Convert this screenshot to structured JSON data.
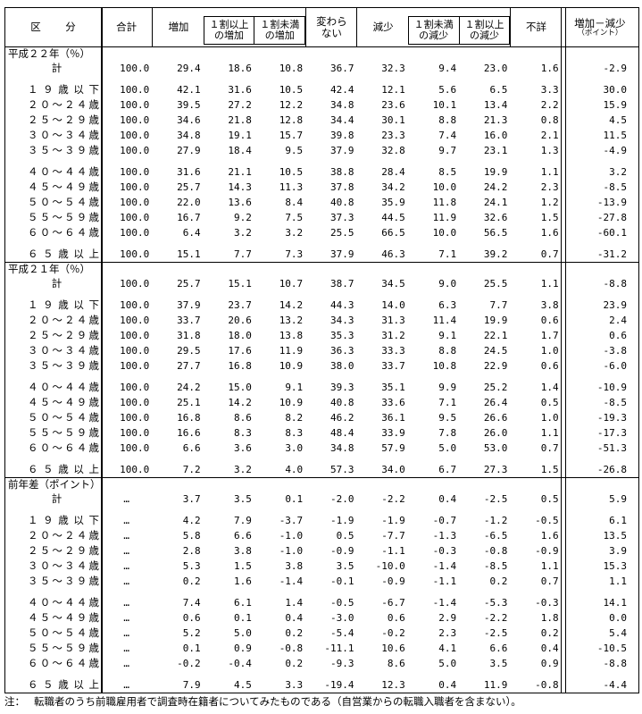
{
  "header": {
    "category_label": "区　分",
    "col_total": "合計",
    "col_increase": "増加",
    "col_increase_10plus": "１割以上\nの増加",
    "col_increase_under10": "１割未満\nの増加",
    "col_unchanged": "変わら\nない",
    "col_decrease": "減少",
    "col_decrease_under10": "１割未満\nの減少",
    "col_decrease_10plus": "１割以上\nの減少",
    "col_unknown": "不詳",
    "col_diff": "増加－減少",
    "col_diff_unit": "（ポイント）"
  },
  "sections": [
    {
      "title": "平成２２年（％）",
      "groups": [
        [
          {
            "label": "計",
            "values": [
              "100.0",
              "29.4",
              "18.6",
              "10.8",
              "36.7",
              "32.3",
              "9.4",
              "23.0",
              "1.6"
            ],
            "diff": "-2.9"
          }
        ],
        [
          {
            "label": "１９歳以下",
            "values": [
              "100.0",
              "42.1",
              "31.6",
              "10.5",
              "42.4",
              "12.1",
              "5.6",
              "6.5",
              "3.3"
            ],
            "diff": "30.0"
          },
          {
            "label": "２０～２４歳",
            "values": [
              "100.0",
              "39.5",
              "27.2",
              "12.2",
              "34.8",
              "23.6",
              "10.1",
              "13.4",
              "2.2"
            ],
            "diff": "15.9"
          },
          {
            "label": "２５～２９歳",
            "values": [
              "100.0",
              "34.6",
              "21.8",
              "12.8",
              "34.4",
              "30.1",
              "8.8",
              "21.3",
              "0.8"
            ],
            "diff": "4.5"
          },
          {
            "label": "３０～３４歳",
            "values": [
              "100.0",
              "34.8",
              "19.1",
              "15.7",
              "39.8",
              "23.3",
              "7.4",
              "16.0",
              "2.1"
            ],
            "diff": "11.5"
          },
          {
            "label": "３５～３９歳",
            "values": [
              "100.0",
              "27.9",
              "18.4",
              "9.5",
              "37.9",
              "32.8",
              "9.7",
              "23.1",
              "1.3"
            ],
            "diff": "-4.9"
          }
        ],
        [
          {
            "label": "４０～４４歳",
            "values": [
              "100.0",
              "31.6",
              "21.1",
              "10.5",
              "38.8",
              "28.4",
              "8.5",
              "19.9",
              "1.1"
            ],
            "diff": "3.2"
          },
          {
            "label": "４５～４９歳",
            "values": [
              "100.0",
              "25.7",
              "14.3",
              "11.3",
              "37.8",
              "34.2",
              "10.0",
              "24.2",
              "2.3"
            ],
            "diff": "-8.5"
          },
          {
            "label": "５０～５４歳",
            "values": [
              "100.0",
              "22.0",
              "13.6",
              "8.4",
              "40.8",
              "35.9",
              "11.8",
              "24.1",
              "1.2"
            ],
            "diff": "-13.9"
          },
          {
            "label": "５５～５９歳",
            "values": [
              "100.0",
              "16.7",
              "9.2",
              "7.5",
              "37.3",
              "44.5",
              "11.9",
              "32.6",
              "1.5"
            ],
            "diff": "-27.8"
          },
          {
            "label": "６０～６４歳",
            "values": [
              "100.0",
              "6.4",
              "3.2",
              "3.2",
              "25.5",
              "66.5",
              "10.0",
              "56.5",
              "1.6"
            ],
            "diff": "-60.1"
          }
        ],
        [
          {
            "label": "６５歳以上",
            "values": [
              "100.0",
              "15.1",
              "7.7",
              "7.3",
              "37.9",
              "46.3",
              "7.1",
              "39.2",
              "0.7"
            ],
            "diff": "-31.2"
          }
        ]
      ]
    },
    {
      "title": "平成２１年（％）",
      "groups": [
        [
          {
            "label": "計",
            "values": [
              "100.0",
              "25.7",
              "15.1",
              "10.7",
              "38.7",
              "34.5",
              "9.0",
              "25.5",
              "1.1"
            ],
            "diff": "-8.8"
          }
        ],
        [
          {
            "label": "１９歳以下",
            "values": [
              "100.0",
              "37.9",
              "23.7",
              "14.2",
              "44.3",
              "14.0",
              "6.3",
              "7.7",
              "3.8"
            ],
            "diff": "23.9"
          },
          {
            "label": "２０～２４歳",
            "values": [
              "100.0",
              "33.7",
              "20.6",
              "13.2",
              "34.3",
              "31.3",
              "11.4",
              "19.9",
              "0.6"
            ],
            "diff": "2.4"
          },
          {
            "label": "２５～２９歳",
            "values": [
              "100.0",
              "31.8",
              "18.0",
              "13.8",
              "35.3",
              "31.2",
              "9.1",
              "22.1",
              "1.7"
            ],
            "diff": "0.6"
          },
          {
            "label": "３０～３４歳",
            "values": [
              "100.0",
              "29.5",
              "17.6",
              "11.9",
              "36.3",
              "33.3",
              "8.8",
              "24.5",
              "1.0"
            ],
            "diff": "-3.8"
          },
          {
            "label": "３５～３９歳",
            "values": [
              "100.0",
              "27.7",
              "16.8",
              "10.9",
              "38.0",
              "33.7",
              "10.8",
              "22.9",
              "0.6"
            ],
            "diff": "-6.0"
          }
        ],
        [
          {
            "label": "４０～４４歳",
            "values": [
              "100.0",
              "24.2",
              "15.0",
              "9.1",
              "39.3",
              "35.1",
              "9.9",
              "25.2",
              "1.4"
            ],
            "diff": "-10.9"
          },
          {
            "label": "４５～４９歳",
            "values": [
              "100.0",
              "25.1",
              "14.2",
              "10.9",
              "40.8",
              "33.6",
              "7.1",
              "26.4",
              "0.5"
            ],
            "diff": "-8.5"
          },
          {
            "label": "５０～５４歳",
            "values": [
              "100.0",
              "16.8",
              "8.6",
              "8.2",
              "46.2",
              "36.1",
              "9.5",
              "26.6",
              "1.0"
            ],
            "diff": "-19.3"
          },
          {
            "label": "５５～５９歳",
            "values": [
              "100.0",
              "16.6",
              "8.3",
              "8.3",
              "48.4",
              "33.9",
              "7.8",
              "26.0",
              "1.1"
            ],
            "diff": "-17.3"
          },
          {
            "label": "６０～６４歳",
            "values": [
              "100.0",
              "6.6",
              "3.6",
              "3.0",
              "34.8",
              "57.9",
              "5.0",
              "53.0",
              "0.7"
            ],
            "diff": "-51.3"
          }
        ],
        [
          {
            "label": "６５歳以上",
            "values": [
              "100.0",
              "7.2",
              "3.2",
              "4.0",
              "57.3",
              "34.0",
              "6.7",
              "27.3",
              "1.5"
            ],
            "diff": "-26.8"
          }
        ]
      ]
    },
    {
      "title": "前年差（ポイント）",
      "groups": [
        [
          {
            "label": "計",
            "values": [
              "…",
              "3.7",
              "3.5",
              "0.1",
              "-2.0",
              "-2.2",
              "0.4",
              "-2.5",
              "0.5"
            ],
            "diff": "5.9"
          }
        ],
        [
          {
            "label": "１９歳以下",
            "values": [
              "…",
              "4.2",
              "7.9",
              "-3.7",
              "-1.9",
              "-1.9",
              "-0.7",
              "-1.2",
              "-0.5"
            ],
            "diff": "6.1"
          },
          {
            "label": "２０～２４歳",
            "values": [
              "…",
              "5.8",
              "6.6",
              "-1.0",
              "0.5",
              "-7.7",
              "-1.3",
              "-6.5",
              "1.6"
            ],
            "diff": "13.5"
          },
          {
            "label": "２５～２９歳",
            "values": [
              "…",
              "2.8",
              "3.8",
              "-1.0",
              "-0.9",
              "-1.1",
              "-0.3",
              "-0.8",
              "-0.9"
            ],
            "diff": "3.9"
          },
          {
            "label": "３０～３４歳",
            "values": [
              "…",
              "5.3",
              "1.5",
              "3.8",
              "3.5",
              "-10.0",
              "-1.4",
              "-8.5",
              "1.1"
            ],
            "diff": "15.3"
          },
          {
            "label": "３５～３９歳",
            "values": [
              "…",
              "0.2",
              "1.6",
              "-1.4",
              "-0.1",
              "-0.9",
              "-1.1",
              "0.2",
              "0.7"
            ],
            "diff": "1.1"
          }
        ],
        [
          {
            "label": "４０～４４歳",
            "values": [
              "…",
              "7.4",
              "6.1",
              "1.4",
              "-0.5",
              "-6.7",
              "-1.4",
              "-5.3",
              "-0.3"
            ],
            "diff": "14.1"
          },
          {
            "label": "４５～４９歳",
            "values": [
              "…",
              "0.6",
              "0.1",
              "0.4",
              "-3.0",
              "0.6",
              "2.9",
              "-2.2",
              "1.8"
            ],
            "diff": "0.0"
          },
          {
            "label": "５０～５４歳",
            "values": [
              "…",
              "5.2",
              "5.0",
              "0.2",
              "-5.4",
              "-0.2",
              "2.3",
              "-2.5",
              "0.2"
            ],
            "diff": "5.4"
          },
          {
            "label": "５５～５９歳",
            "values": [
              "…",
              "0.1",
              "0.9",
              "-0.8",
              "-11.1",
              "10.6",
              "4.1",
              "6.6",
              "0.4"
            ],
            "diff": "-10.5"
          },
          {
            "label": "６０～６４歳",
            "values": [
              "…",
              "-0.2",
              "-0.4",
              "0.2",
              "-9.3",
              "8.6",
              "5.0",
              "3.5",
              "0.9"
            ],
            "diff": "-8.8"
          }
        ],
        [
          {
            "label": "６５歳以上",
            "values": [
              "…",
              "7.9",
              "4.5",
              "3.3",
              "-19.4",
              "12.3",
              "0.4",
              "11.9",
              "-0.8"
            ],
            "diff": "-4.4"
          }
        ]
      ]
    }
  ],
  "note": {
    "prefix": "注：",
    "text": "転職者のうち前職雇用者で調査時在籍者についてみたものである（自営業からの転職入職者を含まない）。"
  }
}
